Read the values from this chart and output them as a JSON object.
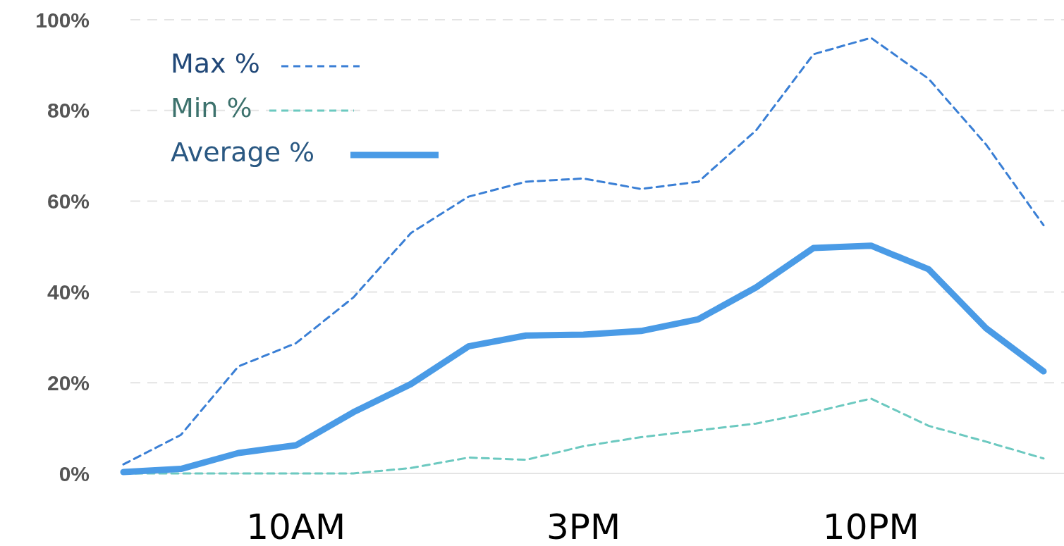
{
  "chart_data": {
    "type": "line",
    "categories": [
      null,
      null,
      null,
      "10AM",
      null,
      null,
      null,
      null,
      "3PM",
      null,
      null,
      null,
      null,
      "10PM",
      null,
      null,
      null
    ],
    "series": [
      {
        "name": "Max %",
        "color": "#3a7fd5",
        "line_style": "dashed",
        "values": [
          2,
          8.5,
          23.6,
          28.7,
          38.8,
          53,
          61,
          64.3,
          65,
          62.7,
          64.3,
          75.6,
          92.4,
          96,
          87,
          72.5,
          54.7
        ]
      },
      {
        "name": "Min %",
        "color": "#6cc9c0",
        "line_style": "dashed",
        "values": [
          0,
          0,
          0,
          0,
          0,
          1.2,
          3.5,
          3,
          6,
          8,
          9.5,
          11,
          13.5,
          16.5,
          10.5,
          7,
          3.3
        ]
      },
      {
        "name": "Average %",
        "color": "#4a9be6",
        "line_style": "solid",
        "values": [
          0.3,
          1,
          4.5,
          6.2,
          13.5,
          19.7,
          28,
          30.4,
          30.6,
          31.4,
          34,
          41,
          49.7,
          50.2,
          45,
          32,
          22.5
        ]
      }
    ],
    "ylim": [
      0,
      100
    ],
    "yticks": [
      {
        "value": 0,
        "label": "0%"
      },
      {
        "value": 20,
        "label": "20%"
      },
      {
        "value": 40,
        "label": "40%"
      },
      {
        "value": 60,
        "label": "60%"
      },
      {
        "value": 80,
        "label": "80%"
      },
      {
        "value": 100,
        "label": "100%"
      }
    ],
    "grid": "y",
    "legend": "top left"
  }
}
